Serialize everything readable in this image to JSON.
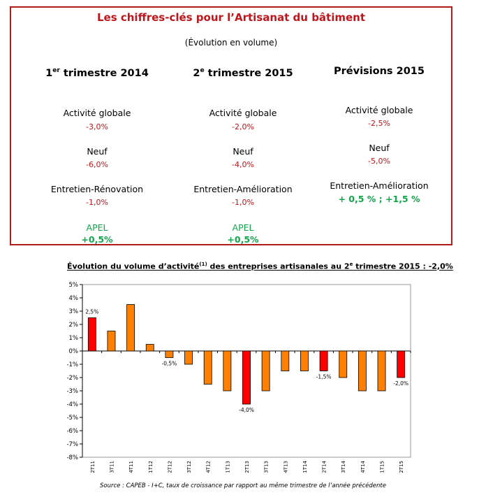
{
  "panel": {
    "title": "Les chiffres-clés pour l’Artisanat du bâtiment",
    "subtitle": "(Évolution en volume)",
    "columns": [
      {
        "head_pre": "1",
        "head_sup": "er",
        "head_post": " trimestre 2014",
        "items": [
          {
            "label": "Activité globale",
            "value": "-3,0%"
          },
          {
            "label": "Neuf",
            "value": "-6,0%"
          },
          {
            "label": "Entretien-Rénovation",
            "value": "-1,0%"
          },
          {
            "label": "APEL",
            "value": "+0,5%"
          }
        ]
      },
      {
        "head_pre": "2",
        "head_sup": "e",
        "head_post": " trimestre 2015",
        "items": [
          {
            "label": "Activité globale",
            "value": "-2,0%"
          },
          {
            "label": "Neuf",
            "value": "-4,0%"
          },
          {
            "label": "Entretien-Amélioration",
            "value": "-1,0%"
          },
          {
            "label": "APEL",
            "value": "+0,5%"
          }
        ]
      },
      {
        "head_pre": "Prévisions 2015",
        "head_sup": "",
        "head_post": "",
        "items": [
          {
            "label": "Activité globale",
            "value": "-2,5%"
          },
          {
            "label": "Neuf",
            "value": "-5,0%"
          },
          {
            "label": "Entretien-Amélioration",
            "value": "+ 0,5 % ; +1,5 %"
          }
        ]
      }
    ]
  },
  "chart_title": {
    "pre": "Évolution du volume d’activité",
    "sup1": "(1)",
    "mid": " des entreprises artisanales au 2",
    "sup2": "e",
    "post": " trimestre 2015 : -2,0%"
  },
  "source": "Source : CAPEB - I+C, taux de croissance par rapport au même trimestre de l’année précédente",
  "colors": {
    "highlight": "#ff0000",
    "bar": "#ff8000",
    "accent": "#c0161b",
    "positive": "#12a64a"
  },
  "chart_data": {
    "type": "bar",
    "categories": [
      "2T11",
      "3T11",
      "4T11",
      "1T12",
      "2T12",
      "3T12",
      "4T12",
      "1T13",
      "2T13",
      "3T13",
      "4T13",
      "1T14",
      "2T14",
      "3T14",
      "4T14",
      "1T15",
      "2T15"
    ],
    "values": [
      2.5,
      1.5,
      3.5,
      0.5,
      -0.5,
      -1.0,
      -2.5,
      -3.0,
      -4.0,
      -3.0,
      -1.5,
      -1.5,
      -1.5,
      -2.0,
      -3.0,
      -3.0,
      -2.0
    ],
    "highlighted": [
      true,
      false,
      false,
      false,
      false,
      false,
      false,
      false,
      true,
      false,
      false,
      false,
      true,
      false,
      false,
      false,
      true
    ],
    "data_labels": [
      "2,5%",
      "",
      "",
      "",
      "-0,5%",
      "",
      "",
      "",
      "-4,0%",
      "",
      "",
      "",
      "-1,5%",
      "",
      "",
      "",
      "-2,0%"
    ],
    "y_ticks": [
      "5%",
      "4%",
      "3%",
      "2%",
      "1%",
      "0%",
      "-1%",
      "-2%",
      "-3%",
      "-4%",
      "-5%",
      "-6%",
      "-7%",
      "-8%"
    ],
    "ylim": [
      -8,
      5
    ],
    "grid": false
  }
}
